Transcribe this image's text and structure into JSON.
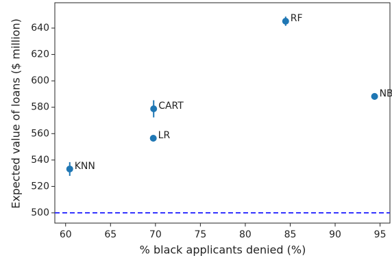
{
  "chart_data": {
    "type": "scatter",
    "x_label": "% black applicants denied (%)",
    "y_label": "Expected value of loans ($ million)",
    "labels": [
      "KNN",
      "LR",
      "CART",
      "RF",
      "NB"
    ],
    "x": [
      60.46,
      69.76,
      69.8,
      84.49,
      94.39
    ],
    "values": [
      533.2,
      556.5,
      578.8,
      645.2,
      588.2
    ],
    "errors": [
      5.2,
      2,
      6.5,
      3.5,
      2.5
    ],
    "color": "#1f77b4",
    "reference_line": {
      "value": 500,
      "color": "#3333ff"
    },
    "xlim": [
      58.8,
      96.1
    ],
    "xticks": [
      60,
      65,
      70,
      75,
      80,
      85,
      90,
      95
    ],
    "ylim": [
      492.2,
      659.2
    ],
    "yticks": [
      500,
      520,
      540,
      560,
      580,
      600,
      620,
      640
    ]
  }
}
